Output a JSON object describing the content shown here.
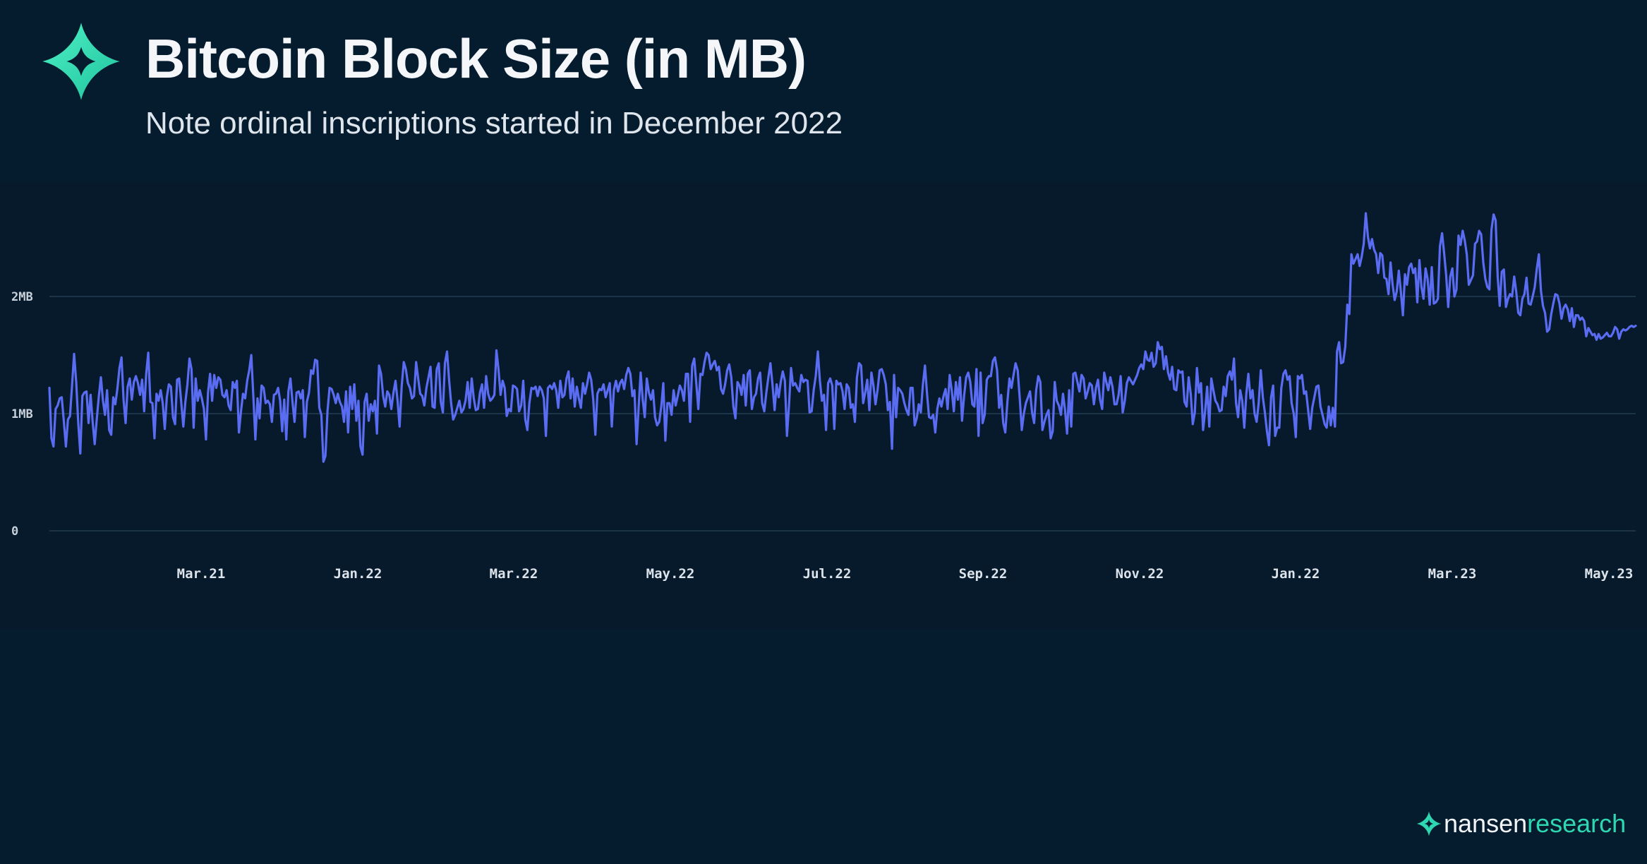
{
  "header": {
    "title": "Bitcoin Block Size (in MB)",
    "subtitle": "Note ordinal inscriptions started in December 2022"
  },
  "brand": {
    "wordmark_primary": "nansen",
    "wordmark_secondary": "research",
    "logo_icon": "nansen-star-icon"
  },
  "colors": {
    "background": "#051b2e",
    "line": "#5a6cf2",
    "grid": "#1c3447",
    "accent": "#2fd6b2"
  },
  "chart_data": {
    "type": "line",
    "title": "Bitcoin Block Size (in MB)",
    "xlabel": "",
    "ylabel": "",
    "x_tick_labels": [
      "Mar.21",
      "Jan.22",
      "Mar.22",
      "May.22",
      "Jul.22",
      "Sep.22",
      "Nov.22",
      "Jan.22",
      "Mar.23",
      "May.23"
    ],
    "y_ticks": [
      0,
      1,
      2
    ],
    "y_tick_labels": [
      "0",
      "1MB",
      "2MB"
    ],
    "ylim": [
      0,
      2.9
    ],
    "grid": "horizontal",
    "legend": "none",
    "series": [
      {
        "values": [
          1.22,
          0.79,
          0.72,
          1.04,
          1.07,
          1.13,
          1.14,
          0.94,
          0.72,
          0.95,
          0.98,
          1.24,
          1.51,
          1.27,
          0.92,
          0.66,
          1.15,
          1.18,
          1.19,
          0.92,
          1.16,
          0.93,
          0.74,
          0.95,
          1.15,
          1.31,
          1.11,
          0.99,
          1.2,
          0.86,
          0.82,
          1.14,
          1.08,
          1.21,
          1.39,
          1.48,
          1.12,
          0.92,
          1.23,
          1.3,
          1.12,
          1.27,
          1.32,
          1.26,
          1.16,
          1.29,
          1.02,
          1.34,
          1.52,
          1.1,
          1.09,
          0.79,
          1.17,
          1.11,
          1.2,
          1.09,
          0.87,
          1.14,
          1.25,
          1.23,
          0.97,
          0.91,
          1.29,
          1.3,
          1.1,
          0.89,
          1.1,
          1.25,
          1.47,
          1.38,
          0.88,
          1.3,
          1.11,
          1.2,
          1.13,
          1.04,
          0.78,
          1.18,
          1.34,
          1.11,
          1.33,
          1.22,
          1.31,
          1.29,
          1.16,
          1.14,
          1.2,
          1.07,
          1.03,
          1.27,
          1.22,
          1.28,
          0.84,
          1.02,
          1.17,
          1.13,
          1.28,
          1.37,
          1.5,
          1.15,
          0.78,
          1.13,
          0.96,
          1.24,
          1.22,
          1.09,
          1.11,
          1.08,
          0.93,
          1.16,
          1.17,
          1.22,
          1.11,
          0.85,
          1.12,
          0.78,
          1.19,
          1.3,
          1.1,
          0.93,
          1.18,
          1.19,
          1.13,
          1.2,
          0.8,
          1.1,
          1.18,
          1.37,
          1.34,
          1.46,
          1.45,
          1.05,
          0.99,
          0.59,
          0.64,
          1.02,
          1.22,
          1.21,
          1.16,
          1.09,
          1.17,
          1.1,
          1.06,
          0.93,
          1.19,
          0.84,
          1.23,
          1.04,
          1.25,
          0.94,
          1.11,
          0.72,
          0.65,
          1.1,
          1.17,
          0.94,
          1.08,
          1.02,
          1.11,
          0.83,
          1.41,
          1.34,
          1.15,
          1.06,
          1.19,
          1.16,
          1.04,
          1.18,
          1.28,
          1.11,
          0.89,
          1.23,
          1.44,
          1.38,
          1.26,
          1.22,
          1.13,
          1.15,
          1.44,
          1.3,
          1.17,
          1.15,
          1.07,
          1.22,
          1.31,
          1.4,
          1.06,
          1.05,
          1.38,
          1.43,
          1.1,
          1.01,
          1.43,
          1.53,
          1.29,
          1.09,
          0.95,
          0.99,
          1.05,
          1.11,
          1.01,
          1.04,
          1.11,
          1.27,
          1.05,
          1.3,
          1.13,
          1.03,
          1.04,
          1.18,
          1.25,
          1.05,
          1.32,
          1.17,
          1.11,
          1.13,
          1.16,
          1.54,
          1.38,
          1.16,
          1.28,
          1.22,
          0.98,
          1.04,
          1.02,
          1.24,
          1.23,
          1.21,
          1.02,
          1.07,
          1.28,
          0.95,
          0.86,
          1.09,
          1.22,
          1.21,
          1.23,
          1.15,
          1.23,
          1.2,
          1.13,
          0.81,
          1.22,
          1.24,
          1.21,
          1.26,
          1.2,
          1.05,
          1.28,
          1.14,
          1.16,
          1.3,
          1.36,
          1.13,
          1.3,
          1.06,
          1.23,
          1.13,
          1.05,
          1.26,
          1.17,
          1.25,
          1.35,
          1.29,
          1.12,
          0.82,
          1.17,
          1.21,
          1.2,
          1.25,
          1.14,
          1.2,
          1.26,
          0.89,
          1.2,
          1.28,
          1.19,
          1.26,
          1.29,
          1.21,
          1.33,
          1.39,
          1.34,
          1.15,
          1.2,
          0.74,
          1.05,
          1.35,
          1.12,
          0.97,
          1.3,
          1.18,
          1.12,
          1.2,
          0.97,
          0.9,
          0.93,
          1.06,
          1.26,
          0.77,
          1.09,
          1.09,
          0.99,
          1.2,
          1.07,
          1.15,
          1.24,
          1.2,
          1.11,
          1.34,
          1.34,
          0.93,
          1.41,
          1.47,
          1.26,
          1.04,
          1.34,
          1.33,
          1.44,
          1.52,
          1.5,
          1.38,
          1.42,
          1.45,
          1.37,
          1.4,
          1.21,
          1.17,
          1.25,
          1.37,
          1.42,
          1.31,
          1.06,
          0.96,
          1.27,
          1.24,
          1.16,
          1.33,
          1.07,
          1.34,
          1.37,
          1.04,
          1.14,
          1.17,
          1.3,
          1.35,
          1.09,
          1.02,
          1.18,
          1.31,
          1.43,
          1.25,
          1.03,
          1.25,
          1.14,
          1.27,
          1.36,
          1.28,
          0.81,
          1.07,
          1.39,
          1.24,
          1.26,
          1.22,
          1.19,
          1.33,
          1.27,
          1.29,
          1.28,
          1.01,
          1.02,
          1.2,
          1.32,
          1.53,
          1.28,
          1.11,
          1.16,
          0.86,
          1.26,
          1.3,
          1.24,
          0.87,
          1.28,
          1.25,
          1.26,
          1.19,
          1.04,
          1.25,
          1.22,
          1.05,
          1.08,
          0.93,
          1.31,
          1.43,
          1.41,
          1.09,
          1.18,
          1.29,
          1.03,
          1.35,
          1.24,
          1.08,
          1.2,
          1.37,
          1.38,
          1.33,
          1.25,
          1.03,
          1.1,
          0.7,
          1.33,
          0.97,
          1.22,
          1.2,
          1.17,
          1.09,
          1.03,
          0.99,
          1.22,
          1.22,
          0.9,
          0.96,
          1.08,
          1.01,
          1.25,
          1.41,
          1.17,
          0.97,
          0.96,
          0.99,
          0.84,
          1.04,
          1.13,
          1.06,
          1.15,
          1.21,
          1.04,
          1.33,
          1.2,
          1.02,
          1.27,
          1.12,
          1.31,
          0.94,
          1.15,
          1.31,
          1.35,
          1.27,
          1.08,
          1.06,
          1.38,
          0.81,
          1.35,
          0.92,
          0.99,
          1.29,
          1.32,
          1.32,
          1.45,
          1.48,
          1.37,
          1.05,
          1.16,
          0.92,
          0.84,
          1.1,
          1.3,
          1.22,
          1.33,
          1.43,
          1.37,
          1.13,
          0.86,
          1.0,
          1.09,
          1.14,
          1.19,
          1.01,
          0.92,
          1.2,
          1.32,
          1.27,
          0.86,
          0.93,
          0.99,
          1.03,
          0.79,
          0.85,
          1.27,
          1.11,
          1.07,
          0.99,
          1.17,
          1.03,
          0.83,
          1.2,
          0.89,
          1.34,
          1.35,
          1.27,
          1.19,
          1.33,
          1.3,
          1.13,
          1.19,
          1.26,
          1.24,
          1.08,
          1.22,
          1.29,
          1.12,
          1.04,
          1.35,
          1.27,
          1.2,
          1.31,
          1.23,
          1.08,
          1.08,
          1.16,
          1.32,
          1.01,
          1.11,
          1.26,
          1.31,
          1.28,
          1.25,
          1.29,
          1.33,
          1.39,
          1.42,
          1.38,
          1.53,
          1.46,
          1.45,
          1.52,
          1.4,
          1.43,
          1.61,
          1.55,
          1.57,
          1.38,
          1.49,
          1.35,
          1.29,
          1.4,
          1.21,
          1.2,
          1.37,
          1.35,
          1.36,
          1.1,
          1.06,
          1.31,
          1.17,
          0.91,
          1.01,
          1.39,
          1.18,
          1.26,
          0.86,
          1.02,
          1.23,
          0.89,
          1.3,
          1.2,
          1.11,
          1.08,
          1.02,
          1.03,
          1.23,
          1.15,
          1.32,
          1.36,
          1.29,
          1.47,
          1.09,
          0.97,
          1.2,
          1.11,
          0.88,
          1.17,
          1.34,
          1.13,
          1.2,
          1.0,
          0.93,
          1.09,
          1.37,
          1.14,
          1.01,
          0.85,
          0.73,
          1.14,
          1.24,
          0.81,
          0.88,
          0.88,
          1.22,
          1.34,
          1.37,
          1.29,
          1.32,
          1.09,
          1.0,
          0.8,
          1.32,
          1.3,
          1.33,
          1.17,
          1.19,
          1.03,
          0.87,
          1.05,
          1.14,
          1.23,
          1.24,
          1.06,
          0.99,
          0.91,
          0.88,
          1.06,
          0.9,
          1.05,
          0.89,
          1.53,
          1.61,
          1.43,
          1.44,
          1.57,
          1.93,
          1.85,
          2.36,
          2.28,
          2.32,
          2.36,
          2.26,
          2.34,
          2.45,
          2.71,
          2.51,
          2.41,
          2.49,
          2.4,
          2.36,
          2.2,
          2.37,
          2.35,
          2.16,
          2.15,
          2.02,
          2.29,
          2.1,
          1.97,
          2.04,
          2.22,
          2.04,
          1.84,
          2.19,
          2.1,
          2.25,
          2.28,
          2.2,
          2.24,
          1.95,
          2.31,
          2.08,
          1.98,
          2.24,
          2.15,
          1.93,
          2.25,
          1.94,
          1.95,
          1.98,
          2.43,
          2.54,
          2.37,
          2.18,
          1.91,
          2.17,
          2.24,
          2.0,
          2.06,
          2.52,
          2.44,
          2.56,
          2.48,
          2.36,
          2.1,
          2.14,
          2.18,
          2.45,
          2.47,
          2.56,
          2.53,
          2.29,
          2.15,
          2.08,
          2.06,
          2.57,
          2.7,
          2.65,
          2.17,
          1.92,
          2.21,
          2.23,
          1.91,
          1.98,
          2.02,
          2.0,
          2.17,
          2.04,
          1.86,
          1.84,
          1.98,
          2.02,
          2.16,
          1.94,
          1.93,
          2.0,
          2.08,
          2.24,
          2.36,
          2.05,
          1.92,
          1.86,
          1.7,
          1.72,
          1.85,
          1.94,
          2.02,
          2.01,
          1.94,
          1.81,
          1.9,
          1.93,
          1.89,
          1.79,
          1.9,
          1.74,
          1.84,
          1.84,
          1.8,
          1.82,
          1.79,
          1.66,
          1.73,
          1.7,
          1.67,
          1.68,
          1.63,
          1.68,
          1.64,
          1.65,
          1.67,
          1.69,
          1.66,
          1.66,
          1.69,
          1.74,
          1.72,
          1.64,
          1.7,
          1.72,
          1.71,
          1.72,
          1.74,
          1.75,
          1.74,
          1.75
        ]
      }
    ]
  }
}
